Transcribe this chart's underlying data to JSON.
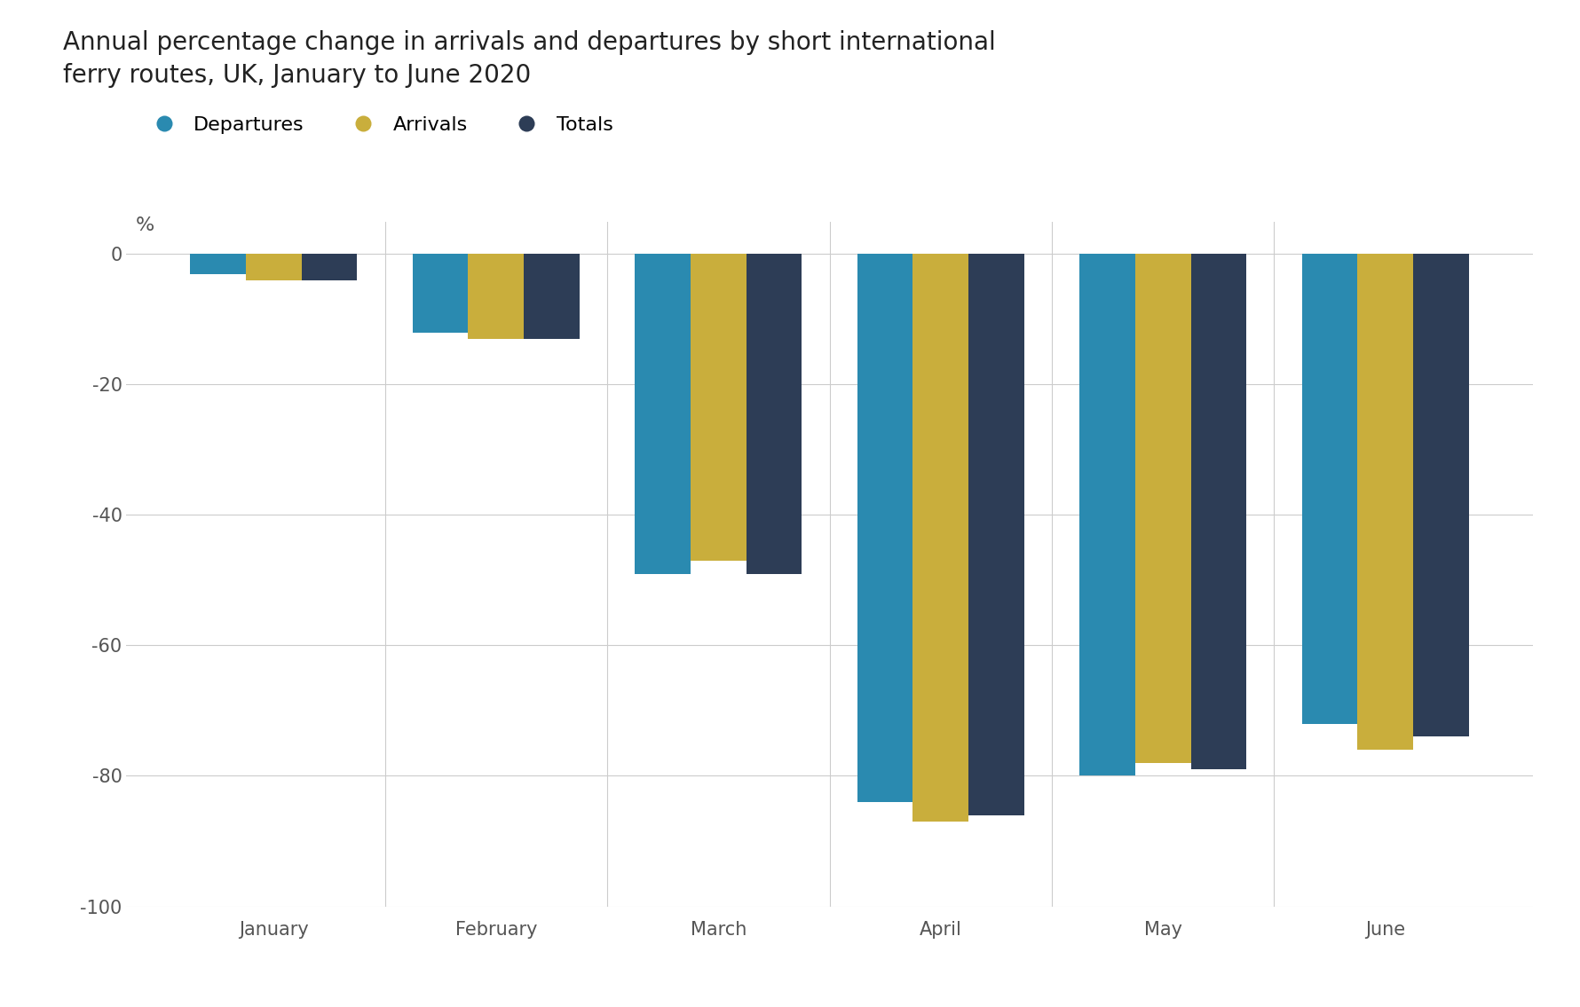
{
  "title": "Annual percentage change in arrivals and departures by short international\nferry routes, UK, January to June 2020",
  "months": [
    "January",
    "February",
    "March",
    "April",
    "May",
    "June"
  ],
  "departures": [
    -3,
    -12,
    -49,
    -84,
    -80,
    -72
  ],
  "arrivals": [
    -4,
    -13,
    -47,
    -87,
    -78,
    -76
  ],
  "totals": [
    -4,
    -13,
    -49,
    -86,
    -79,
    -74
  ],
  "colors": {
    "departures": "#2a8ab0",
    "arrivals": "#c9ae3c",
    "totals": "#2d3d56"
  },
  "bar_width": 0.25,
  "ylim": [
    -100,
    5
  ],
  "yticks": [
    0,
    -20,
    -40,
    -60,
    -80,
    -100
  ],
  "ylabel": "%",
  "legend_labels": [
    "Departures",
    "Arrivals",
    "Totals"
  ],
  "background_color": "#ffffff",
  "grid_color": "#cccccc",
  "title_fontsize": 20,
  "label_fontsize": 16,
  "tick_fontsize": 15,
  "legend_fontsize": 16
}
